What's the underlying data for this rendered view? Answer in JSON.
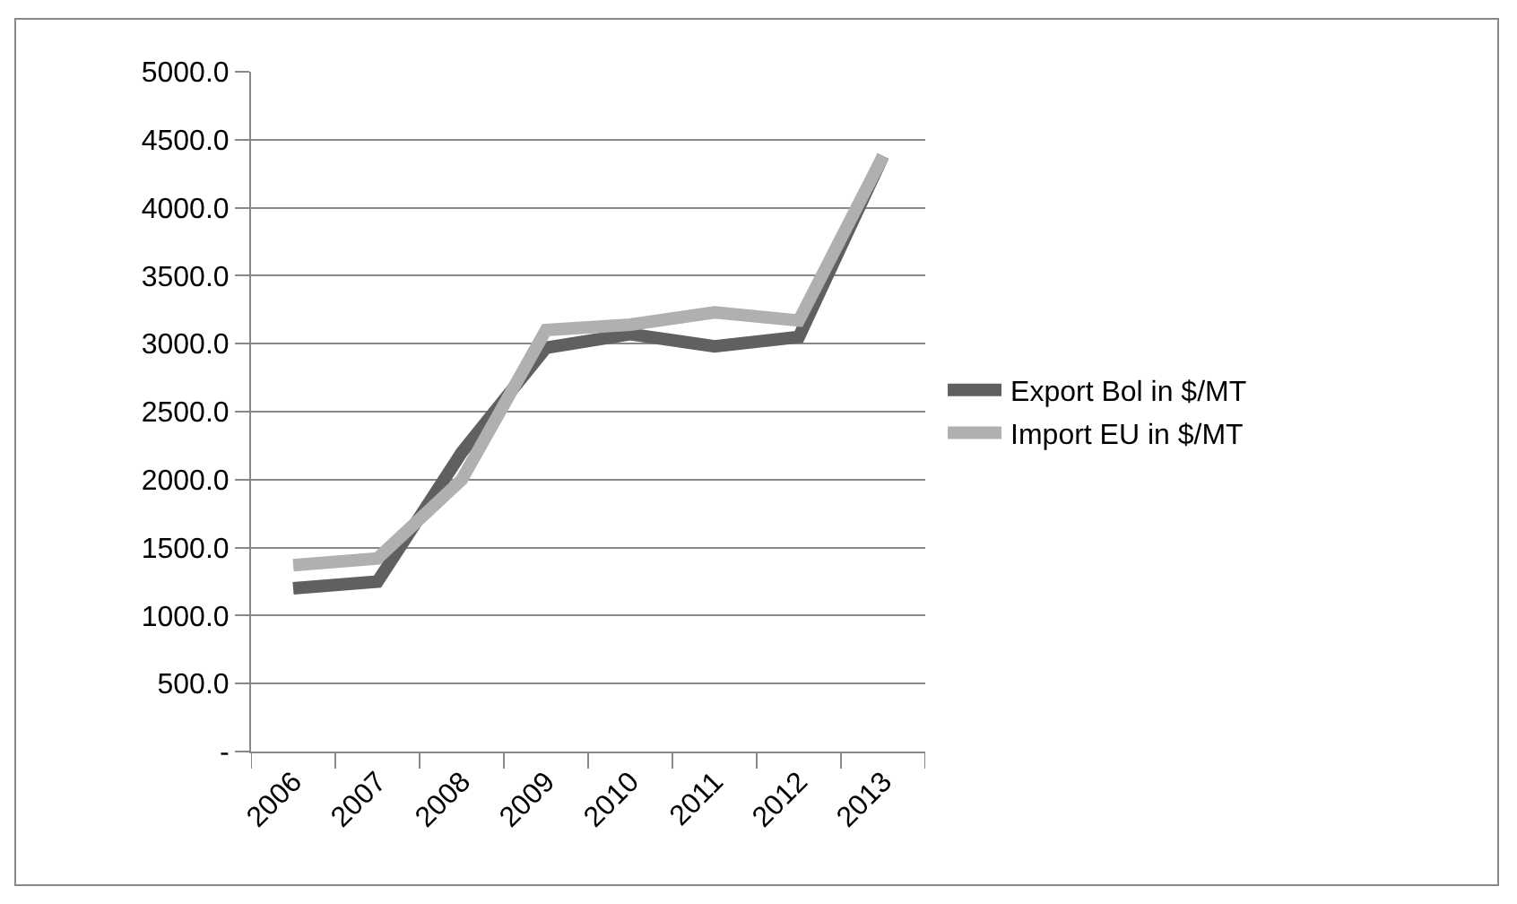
{
  "chart_data": {
    "type": "line",
    "categories": [
      "2006",
      "2007",
      "2008",
      "2009",
      "2010",
      "2011",
      "2012",
      "2013"
    ],
    "series": [
      {
        "name": "Export Bol in $/MT",
        "color": "#606060",
        "values": [
          1200,
          1250,
          2200,
          2970,
          3070,
          2980,
          3050,
          4380
        ]
      },
      {
        "name": "Import EU in $/MT",
        "color": "#b0b0b0",
        "values": [
          1370,
          1420,
          2000,
          3100,
          3140,
          3230,
          3170,
          4380
        ]
      }
    ],
    "ylim": [
      0,
      5000
    ],
    "yticks": [
      {
        "value": 0,
        "label": "-"
      },
      {
        "value": 500,
        "label": "500.0"
      },
      {
        "value": 1000,
        "label": "1000.0"
      },
      {
        "value": 1500,
        "label": "1500.0"
      },
      {
        "value": 2000,
        "label": "2000.0"
      },
      {
        "value": 2500,
        "label": "2500.0"
      },
      {
        "value": 3000,
        "label": "3000.0"
      },
      {
        "value": 3500,
        "label": "3500.0"
      },
      {
        "value": 4000,
        "label": "4000.0"
      },
      {
        "value": 4500,
        "label": "4500.0"
      },
      {
        "value": 5000,
        "label": "5000.0"
      }
    ],
    "grid": "y",
    "legend": "right",
    "marker": "none",
    "line_style": "solid"
  }
}
